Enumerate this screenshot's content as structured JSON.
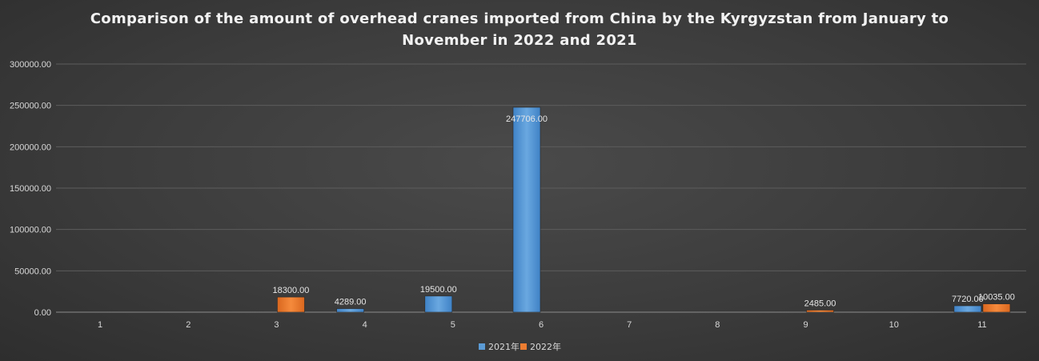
{
  "chart_data": {
    "type": "bar",
    "title": "Comparison of the amount of overhead cranes imported from China by the Kyrgyzstan from January to November in 2022 and 2021",
    "categories": [
      "1",
      "2",
      "3",
      "4",
      "5",
      "6",
      "7",
      "8",
      "9",
      "10",
      "11"
    ],
    "series": [
      {
        "name": "2021年",
        "color": "#5b9bd5",
        "values": [
          null,
          null,
          null,
          4289,
          19500,
          247706,
          null,
          null,
          null,
          null,
          7720
        ],
        "labels": [
          "",
          "",
          "",
          "4289.00",
          "19500.00",
          "247706.00",
          "",
          "",
          "",
          "",
          "7720.00"
        ]
      },
      {
        "name": "2022年",
        "color": "#ed7d31",
        "values": [
          null,
          null,
          18300,
          null,
          null,
          null,
          null,
          null,
          2485,
          null,
          10035
        ],
        "labels": [
          "",
          "",
          "18300.00",
          "",
          "",
          "",
          "",
          "",
          "2485.00",
          "",
          "10035.00"
        ]
      }
    ],
    "yticks": [
      "0.00",
      "50000.00",
      "100000.00",
      "150000.00",
      "200000.00",
      "250000.00",
      "300000.00"
    ],
    "ylim": [
      0,
      300000
    ],
    "grid": true,
    "legend": "bottom"
  }
}
